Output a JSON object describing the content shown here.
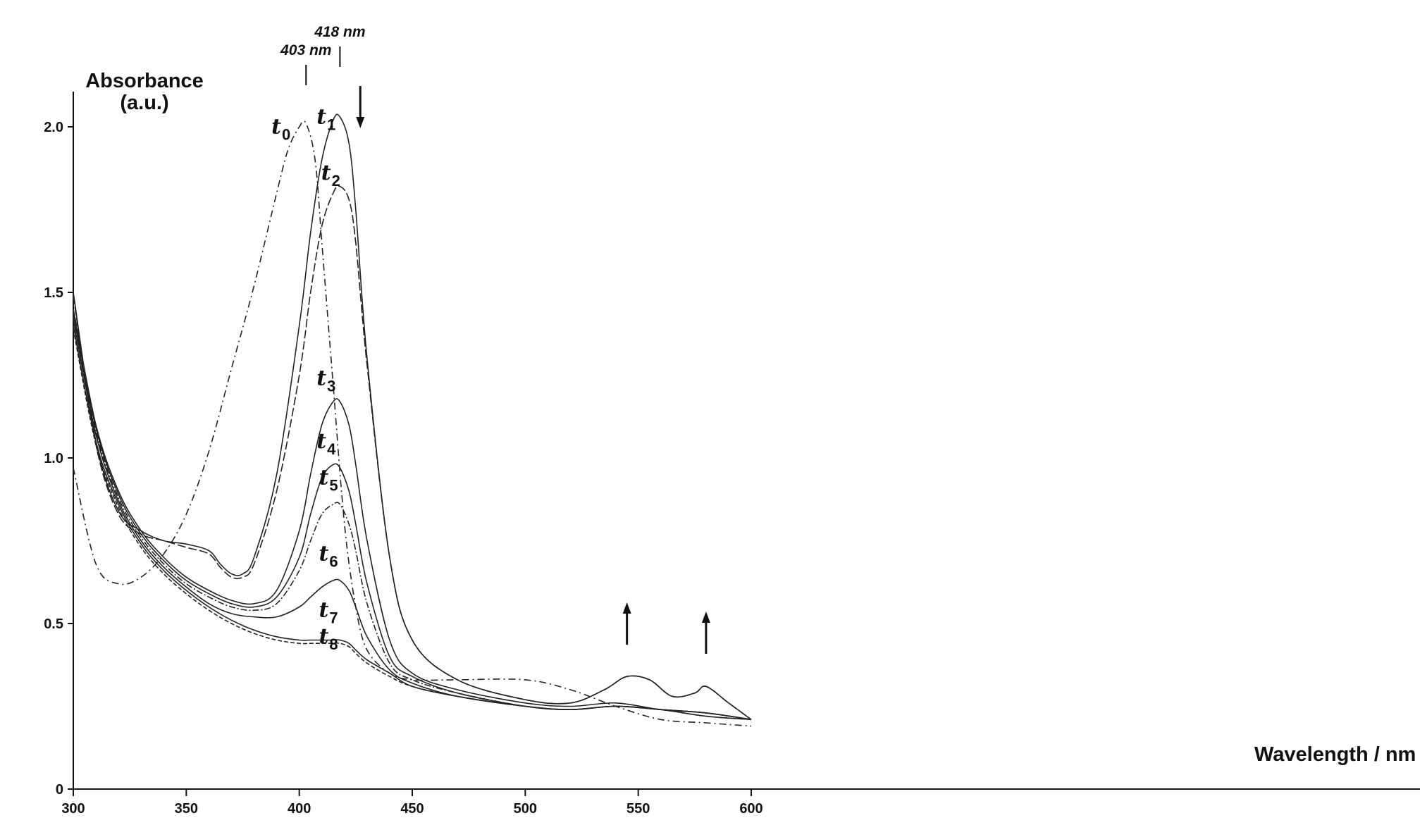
{
  "chart_data": {
    "type": "line",
    "ylabel_line1": "Absorbance",
    "ylabel_line2": "(a.u.)",
    "xlabel": "Wavelength / nm",
    "xlim": [
      300,
      600
    ],
    "ylim": [
      0,
      2.0
    ],
    "x_ticks": [
      "300",
      "350",
      "400",
      "450",
      "500",
      "550",
      "600"
    ],
    "y_ticks": [
      "0",
      "0.5",
      "1.0",
      "1.5",
      "2.0"
    ],
    "peak_annotations": [
      {
        "text": "403 nm",
        "x": 403
      },
      {
        "text": "418 nm",
        "x": 418
      }
    ],
    "arrows": [
      {
        "x": 427,
        "direction": "down"
      },
      {
        "x": 545,
        "direction": "up"
      },
      {
        "x": 580,
        "direction": "up"
      }
    ],
    "series": [
      {
        "name": "t0",
        "label_main": "t",
        "label_sub": "0",
        "dash": "10,5,2,5",
        "label_x": 392,
        "label_y": 1.98,
        "x": [
          300,
          310,
          320,
          330,
          340,
          350,
          360,
          370,
          380,
          390,
          395,
          400,
          403,
          407,
          410,
          415,
          420,
          425,
          430,
          440,
          450,
          470,
          500,
          520,
          540,
          560,
          580,
          600
        ],
        "y": [
          0.97,
          0.68,
          0.62,
          0.64,
          0.71,
          0.83,
          1.02,
          1.27,
          1.52,
          1.8,
          1.93,
          2.0,
          2.01,
          1.9,
          1.65,
          1.22,
          0.8,
          0.55,
          0.42,
          0.35,
          0.33,
          0.33,
          0.33,
          0.3,
          0.25,
          0.21,
          0.2,
          0.19
        ]
      },
      {
        "name": "t1",
        "label_main": "t",
        "label_sub": "1",
        "dash": "",
        "label_x": 412,
        "label_y": 2.01,
        "x": [
          300,
          310,
          320,
          330,
          340,
          350,
          360,
          365,
          370,
          375,
          380,
          390,
          400,
          405,
          410,
          415,
          418,
          422,
          425,
          430,
          440,
          450,
          470,
          500,
          520,
          535,
          545,
          555,
          565,
          575,
          580,
          590,
          600
        ],
        "y": [
          1.5,
          1.05,
          0.84,
          0.78,
          0.75,
          0.74,
          0.72,
          0.68,
          0.65,
          0.65,
          0.7,
          0.95,
          1.4,
          1.68,
          1.9,
          2.02,
          2.03,
          1.95,
          1.75,
          1.3,
          0.7,
          0.45,
          0.33,
          0.27,
          0.26,
          0.3,
          0.34,
          0.33,
          0.28,
          0.29,
          0.31,
          0.26,
          0.21
        ]
      },
      {
        "name": "t2",
        "label_main": "t",
        "label_sub": "2",
        "dash": "12,4",
        "label_x": 414,
        "label_y": 1.84,
        "x": [
          300,
          310,
          320,
          330,
          340,
          350,
          360,
          365,
          370,
          375,
          380,
          390,
          400,
          405,
          410,
          415,
          418,
          422,
          425,
          430,
          440,
          450,
          470,
          500,
          520,
          535,
          545,
          555,
          565,
          575,
          580,
          590,
          600
        ],
        "y": [
          1.49,
          1.04,
          0.83,
          0.77,
          0.75,
          0.73,
          0.71,
          0.67,
          0.64,
          0.64,
          0.68,
          0.9,
          1.25,
          1.5,
          1.7,
          1.8,
          1.82,
          1.78,
          1.65,
          1.28,
          0.7,
          0.45,
          0.33,
          0.27,
          0.26,
          0.3,
          0.34,
          0.33,
          0.28,
          0.29,
          0.31,
          0.26,
          0.21
        ]
      },
      {
        "name": "t3",
        "label_main": "t",
        "label_sub": "3",
        "dash": "",
        "label_x": 412,
        "label_y": 1.22,
        "x": [
          300,
          310,
          320,
          330,
          340,
          350,
          360,
          370,
          380,
          390,
          400,
          405,
          410,
          415,
          418,
          422,
          425,
          430,
          440,
          450,
          470,
          500,
          520,
          540,
          560,
          580,
          600
        ],
        "y": [
          1.45,
          1.1,
          0.9,
          0.78,
          0.7,
          0.64,
          0.6,
          0.57,
          0.56,
          0.6,
          0.78,
          0.95,
          1.1,
          1.17,
          1.17,
          1.1,
          0.98,
          0.75,
          0.45,
          0.35,
          0.3,
          0.26,
          0.25,
          0.26,
          0.24,
          0.23,
          0.21
        ]
      },
      {
        "name": "t4",
        "label_main": "t",
        "label_sub": "4",
        "dash": "",
        "label_x": 412,
        "label_y": 1.03,
        "x": [
          300,
          310,
          320,
          330,
          340,
          350,
          360,
          370,
          380,
          390,
          400,
          405,
          410,
          415,
          418,
          422,
          425,
          430,
          440,
          450,
          470,
          500,
          520,
          540,
          560,
          580,
          600
        ],
        "y": [
          1.44,
          1.09,
          0.89,
          0.77,
          0.69,
          0.63,
          0.59,
          0.56,
          0.55,
          0.58,
          0.7,
          0.83,
          0.94,
          0.98,
          0.97,
          0.9,
          0.8,
          0.62,
          0.4,
          0.34,
          0.29,
          0.25,
          0.24,
          0.25,
          0.24,
          0.23,
          0.21
        ]
      },
      {
        "name": "t5",
        "label_main": "t",
        "label_sub": "5",
        "dash": "9,3,2,3",
        "label_x": 413,
        "label_y": 0.92,
        "x": [
          300,
          310,
          320,
          330,
          340,
          350,
          360,
          370,
          380,
          390,
          400,
          405,
          410,
          415,
          418,
          422,
          425,
          430,
          440,
          450,
          470,
          500,
          520,
          540,
          560,
          580,
          600
        ],
        "y": [
          1.43,
          1.08,
          0.88,
          0.76,
          0.68,
          0.62,
          0.58,
          0.55,
          0.54,
          0.56,
          0.66,
          0.75,
          0.83,
          0.86,
          0.86,
          0.8,
          0.72,
          0.56,
          0.38,
          0.33,
          0.29,
          0.25,
          0.24,
          0.25,
          0.24,
          0.23,
          0.21
        ]
      },
      {
        "name": "t6",
        "label_main": "t",
        "label_sub": "6",
        "dash": "",
        "label_x": 413,
        "label_y": 0.69,
        "x": [
          300,
          310,
          320,
          330,
          340,
          350,
          360,
          370,
          380,
          390,
          400,
          405,
          410,
          415,
          418,
          422,
          425,
          430,
          440,
          450,
          470,
          500,
          520,
          540,
          560,
          580,
          600
        ],
        "y": [
          1.42,
          1.07,
          0.87,
          0.75,
          0.67,
          0.61,
          0.56,
          0.53,
          0.52,
          0.52,
          0.55,
          0.58,
          0.61,
          0.63,
          0.63,
          0.6,
          0.55,
          0.46,
          0.36,
          0.32,
          0.28,
          0.25,
          0.24,
          0.25,
          0.24,
          0.23,
          0.21
        ]
      },
      {
        "name": "t7",
        "label_main": "t",
        "label_sub": "7",
        "dash": "",
        "label_x": 413,
        "label_y": 0.52,
        "x": [
          300,
          310,
          320,
          330,
          340,
          350,
          360,
          370,
          380,
          390,
          400,
          405,
          410,
          415,
          418,
          422,
          425,
          430,
          440,
          450,
          470,
          500,
          520,
          540,
          560,
          580,
          600
        ],
        "y": [
          1.4,
          1.05,
          0.86,
          0.74,
          0.66,
          0.6,
          0.55,
          0.51,
          0.48,
          0.46,
          0.45,
          0.45,
          0.45,
          0.45,
          0.45,
          0.44,
          0.42,
          0.39,
          0.35,
          0.31,
          0.28,
          0.25,
          0.24,
          0.25,
          0.24,
          0.22,
          0.21
        ]
      },
      {
        "name": "t8",
        "label_main": "t",
        "label_sub": "8",
        "dash": "6,3",
        "label_x": 413,
        "label_y": 0.44,
        "x": [
          300,
          310,
          320,
          330,
          340,
          350,
          360,
          370,
          380,
          390,
          400,
          405,
          410,
          415,
          418,
          422,
          425,
          430,
          440,
          450,
          470,
          500,
          520,
          540,
          560,
          580,
          600
        ],
        "y": [
          1.39,
          1.04,
          0.85,
          0.73,
          0.65,
          0.59,
          0.54,
          0.5,
          0.47,
          0.45,
          0.44,
          0.44,
          0.44,
          0.44,
          0.44,
          0.43,
          0.41,
          0.38,
          0.34,
          0.31,
          0.28,
          0.25,
          0.24,
          0.25,
          0.24,
          0.22,
          0.21
        ]
      }
    ]
  }
}
